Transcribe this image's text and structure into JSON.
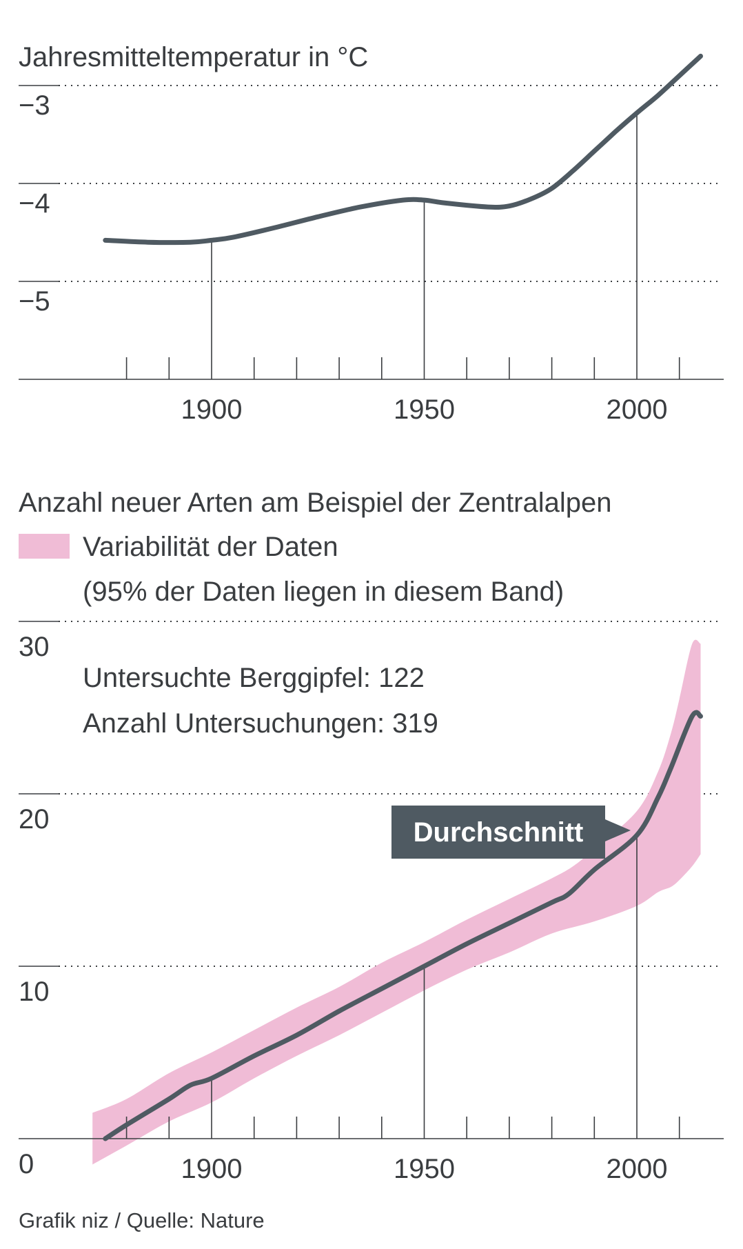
{
  "colors": {
    "line": "#4f5a62",
    "band": "#f0bcd6",
    "text": "#3a3d40",
    "grid": "#3a3d40",
    "label_bg": "#4f5a62",
    "label_text": "#ffffff"
  },
  "chart_data": [
    {
      "type": "line",
      "title": "Jahresmitteltemperatur in °C",
      "xlabel": "",
      "ylabel": "",
      "xlim": [
        1855,
        2020
      ],
      "ylim": [
        -6,
        -2.8
      ],
      "xticks_major": [
        1900,
        1950,
        2000
      ],
      "xtick_labels": [
        "1900",
        "1950",
        "2000"
      ],
      "xticks_minor": [
        1880,
        1890,
        1910,
        1920,
        1930,
        1940,
        1960,
        1970,
        1980,
        1990,
        2010
      ],
      "yticks": [
        -3,
        -4,
        -5
      ],
      "ytick_labels": [
        "−3",
        "−4",
        "−5"
      ],
      "grid": "dotted horizontal",
      "series": [
        {
          "name": "Jahresmitteltemperatur",
          "x": [
            1875,
            1885,
            1895,
            1900,
            1905,
            1915,
            1925,
            1935,
            1945,
            1950,
            1955,
            1965,
            1970,
            1975,
            1980,
            1985,
            1990,
            1995,
            2000,
            2005,
            2010,
            2015
          ],
          "y": [
            -4.58,
            -4.6,
            -4.6,
            -4.58,
            -4.55,
            -4.45,
            -4.34,
            -4.24,
            -4.17,
            -4.17,
            -4.2,
            -4.24,
            -4.23,
            -4.16,
            -4.05,
            -3.87,
            -3.67,
            -3.47,
            -3.28,
            -3.1,
            -2.9,
            -2.7
          ]
        }
      ]
    },
    {
      "type": "area",
      "title": "Anzahl neuer Arten am Beispiel der Zentralalpen",
      "legend": [
        "Variabilität der Daten",
        "(95% der Daten liegen in diesem Band)"
      ],
      "annotations": [
        "Untersuchte Berggipfel: 122",
        "Anzahl Untersuchungen: 319"
      ],
      "callout": "Durchschnitt",
      "source": "Grafik niz / Quelle: Nature",
      "xlim": [
        1855,
        2020
      ],
      "ylim": [
        0,
        30
      ],
      "xticks_major": [
        1900,
        1950,
        2000
      ],
      "xtick_labels": [
        "1900",
        "1950",
        "2000"
      ],
      "xticks_minor": [
        1880,
        1890,
        1910,
        1920,
        1930,
        1940,
        1960,
        1970,
        1980,
        1990,
        2010
      ],
      "yticks": [
        0,
        10,
        20,
        30
      ],
      "ytick_labels": [
        "0",
        "10",
        "20",
        "30"
      ],
      "grid": "dotted horizontal",
      "series": [
        {
          "name": "Durchschnitt",
          "x": [
            1875,
            1880,
            1890,
            1895,
            1900,
            1910,
            1920,
            1930,
            1940,
            1950,
            1960,
            1970,
            1980,
            1984,
            1990,
            2000,
            2005,
            2008,
            2013,
            2015
          ],
          "y": [
            0.0,
            0.8,
            2.3,
            3.1,
            3.5,
            4.8,
            6.0,
            7.4,
            8.7,
            10.0,
            11.3,
            12.5,
            13.7,
            14.2,
            15.6,
            17.6,
            19.8,
            21.5,
            24.5,
            24.5
          ]
        },
        {
          "name": "Band upper",
          "x": [
            1872,
            1880,
            1890,
            1900,
            1910,
            1920,
            1930,
            1940,
            1950,
            1960,
            1970,
            1980,
            1985,
            1990,
            2000,
            2005,
            2008,
            2010,
            2013,
            2015
          ],
          "y": [
            1.5,
            2.3,
            3.8,
            5.0,
            6.3,
            7.6,
            8.8,
            10.2,
            11.4,
            12.7,
            13.9,
            15.1,
            15.8,
            16.8,
            19.0,
            21.3,
            23.5,
            25.5,
            28.7,
            28.7
          ]
        },
        {
          "name": "Band lower",
          "x": [
            2015,
            2013,
            2010,
            2008,
            2005,
            2000,
            1990,
            1980,
            1970,
            1960,
            1950,
            1940,
            1930,
            1920,
            1910,
            1900,
            1890,
            1880,
            1872
          ],
          "y": [
            16.5,
            15.8,
            15.0,
            14.6,
            14.3,
            13.5,
            12.6,
            11.9,
            10.8,
            9.8,
            8.6,
            7.3,
            6.0,
            4.8,
            3.5,
            2.1,
            1.0,
            -0.4,
            -1.5
          ]
        }
      ]
    }
  ]
}
